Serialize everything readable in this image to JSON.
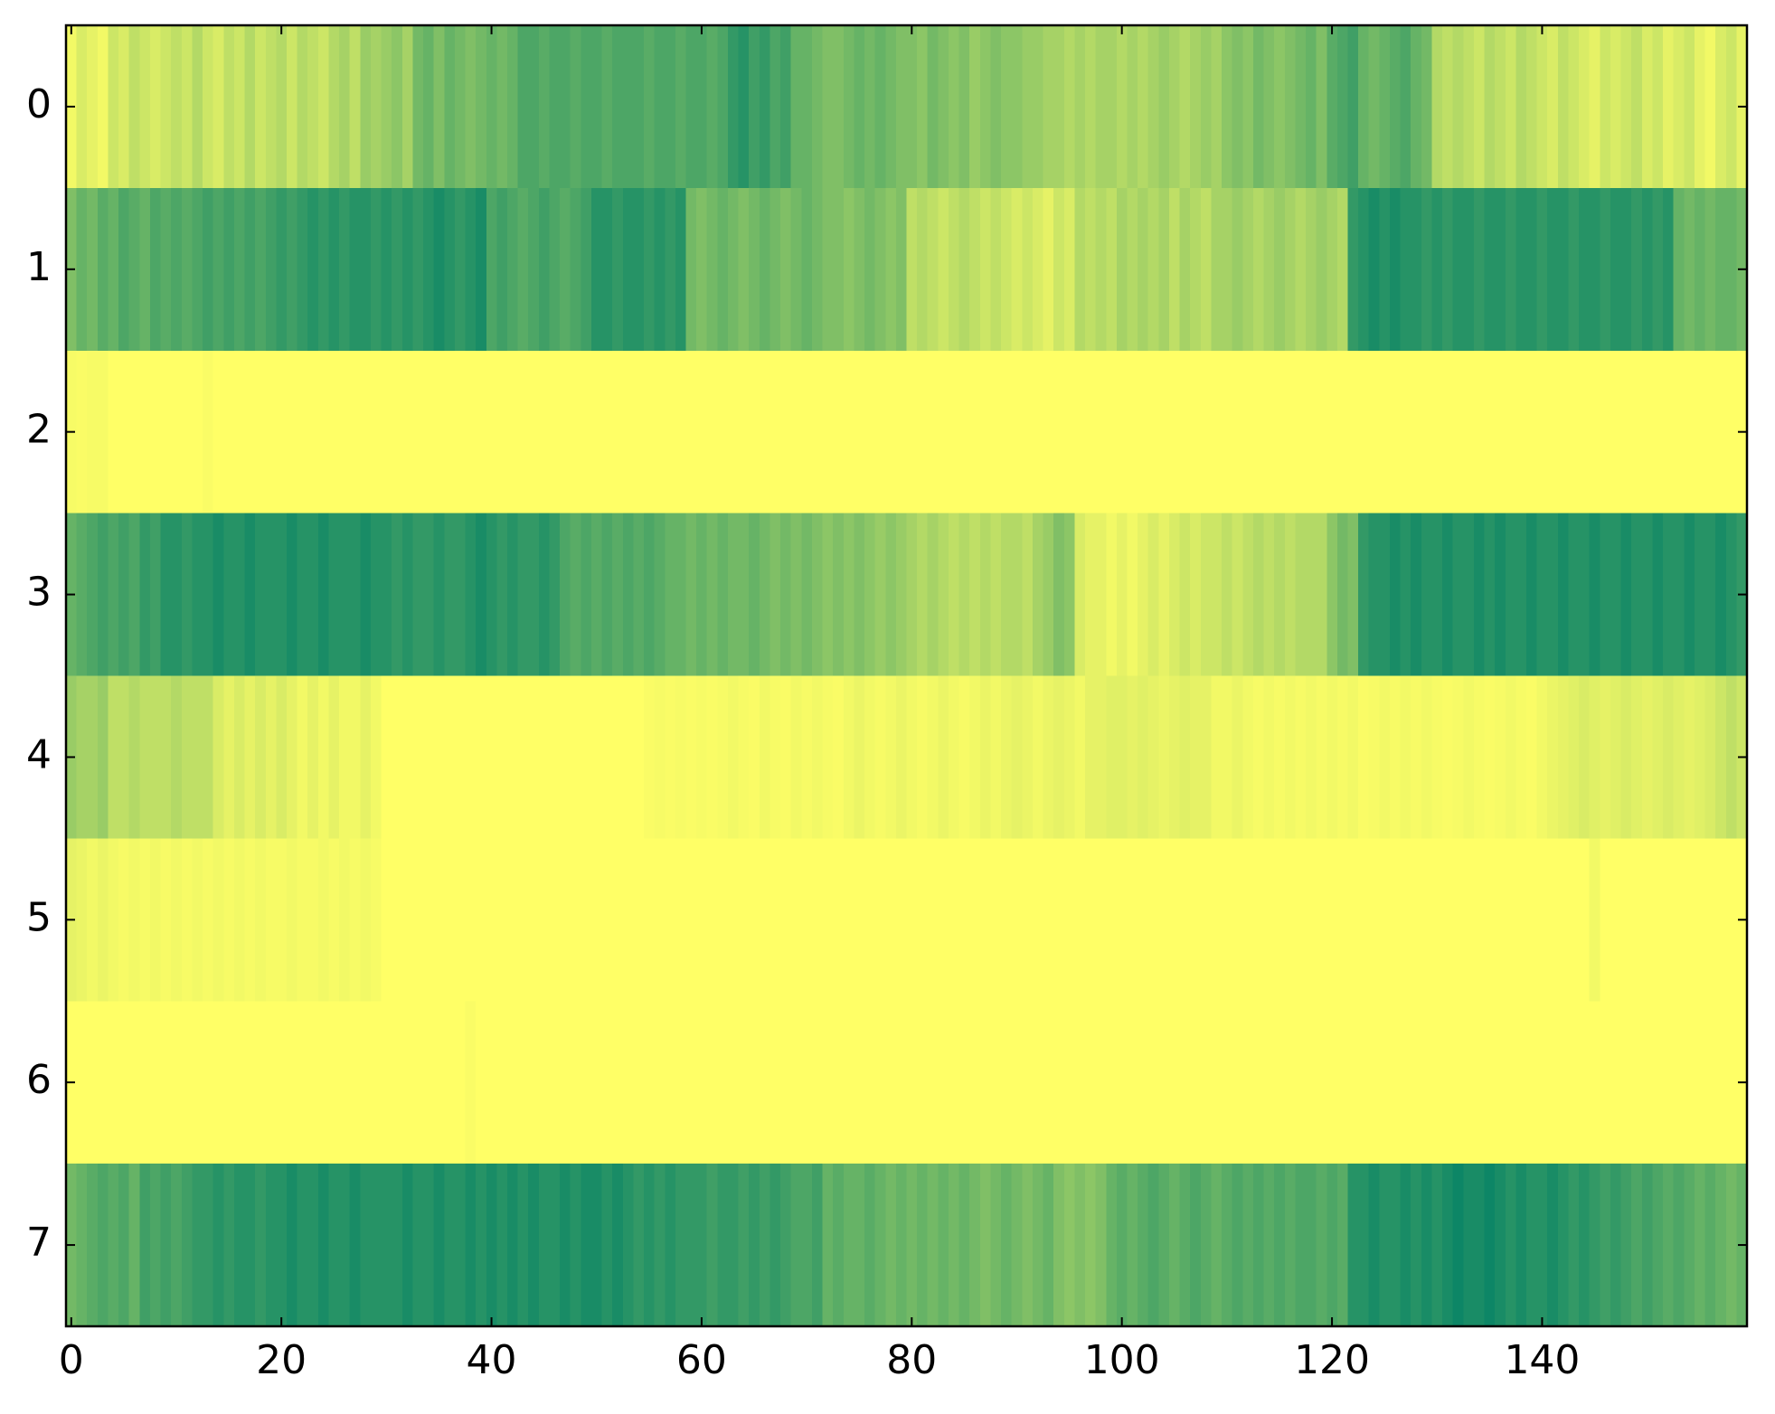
{
  "chart_data": {
    "type": "heatmap",
    "colormap": "summer_r",
    "vlim": [
      0,
      1
    ],
    "xlim": [
      -0.5,
      159.5
    ],
    "ylim": [
      7.5,
      -0.5
    ],
    "xticks": [
      0,
      20,
      40,
      60,
      80,
      100,
      120,
      140
    ],
    "yticks": [
      0,
      1,
      2,
      3,
      4,
      5,
      6,
      7
    ],
    "values": [
      [
        0.05,
        0.15,
        0.1,
        0.05,
        0.2,
        0.15,
        0.25,
        0.2,
        0.15,
        0.2,
        0.25,
        0.2,
        0.3,
        0.2,
        0.15,
        0.25,
        0.2,
        0.3,
        0.2,
        0.25,
        0.3,
        0.2,
        0.3,
        0.25,
        0.2,
        0.3,
        0.35,
        0.25,
        0.4,
        0.35,
        0.4,
        0.45,
        0.35,
        0.55,
        0.6,
        0.5,
        0.6,
        0.55,
        0.5,
        0.55,
        0.6,
        0.55,
        0.6,
        0.7,
        0.7,
        0.65,
        0.7,
        0.7,
        0.65,
        0.7,
        0.7,
        0.65,
        0.7,
        0.7,
        0.7,
        0.65,
        0.7,
        0.7,
        0.65,
        0.7,
        0.7,
        0.65,
        0.7,
        0.8,
        0.85,
        0.75,
        0.8,
        0.7,
        0.75,
        0.6,
        0.6,
        0.55,
        0.5,
        0.5,
        0.55,
        0.6,
        0.55,
        0.6,
        0.55,
        0.5,
        0.5,
        0.45,
        0.55,
        0.5,
        0.45,
        0.5,
        0.4,
        0.45,
        0.5,
        0.45,
        0.45,
        0.4,
        0.4,
        0.35,
        0.35,
        0.3,
        0.35,
        0.3,
        0.35,
        0.35,
        0.3,
        0.35,
        0.3,
        0.35,
        0.4,
        0.35,
        0.3,
        0.35,
        0.4,
        0.35,
        0.45,
        0.5,
        0.45,
        0.55,
        0.5,
        0.45,
        0.5,
        0.55,
        0.6,
        0.5,
        0.65,
        0.7,
        0.75,
        0.6,
        0.55,
        0.6,
        0.65,
        0.7,
        0.6,
        0.55,
        0.3,
        0.25,
        0.3,
        0.25,
        0.2,
        0.3,
        0.25,
        0.2,
        0.3,
        0.25,
        0.2,
        0.15,
        0.25,
        0.2,
        0.15,
        0.1,
        0.2,
        0.15,
        0.2,
        0.25,
        0.15,
        0.2,
        0.1,
        0.15,
        0.2,
        0.1,
        0.05,
        0.15,
        0.2,
        0.1
      ],
      [
        0.5,
        0.6,
        0.55,
        0.65,
        0.6,
        0.7,
        0.65,
        0.6,
        0.7,
        0.65,
        0.7,
        0.65,
        0.7,
        0.75,
        0.7,
        0.75,
        0.7,
        0.75,
        0.7,
        0.75,
        0.8,
        0.75,
        0.8,
        0.85,
        0.8,
        0.85,
        0.8,
        0.85,
        0.85,
        0.8,
        0.85,
        0.8,
        0.85,
        0.8,
        0.85,
        0.9,
        0.85,
        0.8,
        0.85,
        0.9,
        0.7,
        0.75,
        0.7,
        0.65,
        0.7,
        0.75,
        0.7,
        0.65,
        0.7,
        0.75,
        0.85,
        0.85,
        0.8,
        0.85,
        0.85,
        0.8,
        0.85,
        0.8,
        0.85,
        0.55,
        0.5,
        0.55,
        0.6,
        0.55,
        0.5,
        0.55,
        0.6,
        0.55,
        0.5,
        0.55,
        0.6,
        0.55,
        0.5,
        0.5,
        0.45,
        0.5,
        0.55,
        0.5,
        0.45,
        0.5,
        0.25,
        0.3,
        0.25,
        0.2,
        0.25,
        0.3,
        0.25,
        0.2,
        0.25,
        0.2,
        0.15,
        0.2,
        0.15,
        0.1,
        0.2,
        0.15,
        0.3,
        0.25,
        0.3,
        0.25,
        0.35,
        0.3,
        0.35,
        0.3,
        0.35,
        0.25,
        0.35,
        0.3,
        0.25,
        0.35,
        0.35,
        0.4,
        0.35,
        0.3,
        0.35,
        0.4,
        0.35,
        0.3,
        0.35,
        0.4,
        0.35,
        0.3,
        0.8,
        0.85,
        0.9,
        0.85,
        0.9,
        0.85,
        0.85,
        0.8,
        0.85,
        0.8,
        0.85,
        0.85,
        0.8,
        0.85,
        0.85,
        0.8,
        0.85,
        0.85,
        0.8,
        0.85,
        0.85,
        0.8,
        0.85,
        0.85,
        0.8,
        0.85,
        0.85,
        0.8,
        0.85,
        0.8,
        0.85,
        0.6,
        0.55,
        0.6,
        0.55,
        0.6,
        0.6,
        0.55
      ],
      [
        0.03,
        0.02,
        0.03,
        0.03,
        0,
        0,
        0,
        0,
        0,
        0,
        0,
        0,
        0,
        0.02,
        0,
        0,
        0,
        0,
        0,
        0,
        0,
        0,
        0,
        0,
        0,
        0,
        0,
        0,
        0,
        0,
        0,
        0,
        0,
        0,
        0,
        0,
        0,
        0,
        0,
        0,
        0,
        0,
        0,
        0,
        0,
        0,
        0,
        0,
        0,
        0,
        0,
        0,
        0,
        0,
        0,
        0,
        0,
        0,
        0,
        0,
        0,
        0,
        0,
        0,
        0,
        0,
        0,
        0,
        0,
        0,
        0,
        0,
        0,
        0,
        0,
        0,
        0,
        0,
        0,
        0,
        0,
        0,
        0,
        0,
        0,
        0,
        0,
        0,
        0,
        0,
        0,
        0,
        0,
        0,
        0,
        0,
        0,
        0,
        0,
        0,
        0,
        0,
        0,
        0,
        0,
        0,
        0,
        0,
        0,
        0,
        0,
        0,
        0,
        0,
        0,
        0,
        0,
        0,
        0,
        0,
        0,
        0,
        0,
        0,
        0,
        0,
        0,
        0,
        0,
        0,
        0,
        0,
        0,
        0,
        0,
        0,
        0,
        0,
        0,
        0,
        0,
        0,
        0,
        0,
        0,
        0,
        0,
        0,
        0,
        0,
        0,
        0,
        0,
        0,
        0,
        0,
        0,
        0,
        0,
        0
      ],
      [
        0.6,
        0.65,
        0.7,
        0.75,
        0.7,
        0.75,
        0.7,
        0.8,
        0.75,
        0.85,
        0.85,
        0.8,
        0.85,
        0.85,
        0.9,
        0.85,
        0.85,
        0.9,
        0.85,
        0.85,
        0.85,
        0.9,
        0.85,
        0.85,
        0.9,
        0.85,
        0.85,
        0.85,
        0.9,
        0.85,
        0.85,
        0.8,
        0.85,
        0.8,
        0.8,
        0.85,
        0.8,
        0.8,
        0.85,
        0.9,
        0.85,
        0.8,
        0.85,
        0.8,
        0.8,
        0.85,
        0.8,
        0.7,
        0.65,
        0.7,
        0.65,
        0.7,
        0.65,
        0.7,
        0.65,
        0.7,
        0.65,
        0.6,
        0.6,
        0.55,
        0.6,
        0.55,
        0.6,
        0.55,
        0.55,
        0.6,
        0.55,
        0.5,
        0.55,
        0.5,
        0.55,
        0.5,
        0.45,
        0.5,
        0.45,
        0.5,
        0.45,
        0.4,
        0.45,
        0.4,
        0.35,
        0.3,
        0.35,
        0.3,
        0.25,
        0.3,
        0.25,
        0.3,
        0.25,
        0.3,
        0.3,
        0.25,
        0.35,
        0.4,
        0.5,
        0.45,
        0.15,
        0.1,
        0.1,
        0.05,
        0.1,
        0.05,
        0.1,
        0.15,
        0.1,
        0.15,
        0.2,
        0.15,
        0.2,
        0.2,
        0.25,
        0.2,
        0.25,
        0.3,
        0.25,
        0.3,
        0.25,
        0.3,
        0.3,
        0.3,
        0.45,
        0.55,
        0.5,
        0.8,
        0.85,
        0.85,
        0.9,
        0.85,
        0.9,
        0.85,
        0.85,
        0.9,
        0.85,
        0.85,
        0.9,
        0.85,
        0.9,
        0.85,
        0.85,
        0.9,
        0.85,
        0.85,
        0.9,
        0.85,
        0.85,
        0.9,
        0.85,
        0.85,
        0.9,
        0.85,
        0.85,
        0.9,
        0.85,
        0.85,
        0.9,
        0.85,
        0.85,
        0.9,
        0.85,
        0.8
      ],
      [
        0.4,
        0.35,
        0.35,
        0.4,
        0.25,
        0.25,
        0.3,
        0.25,
        0.25,
        0.25,
        0.3,
        0.25,
        0.25,
        0.25,
        0.15,
        0.1,
        0.15,
        0.1,
        0.15,
        0.1,
        0.15,
        0.1,
        0.05,
        0.1,
        0.05,
        0.1,
        0.05,
        0.05,
        0.1,
        0.05,
        0,
        0,
        0,
        0,
        0,
        0,
        0,
        0,
        0,
        0,
        0,
        0,
        0,
        0,
        0,
        0,
        0,
        0,
        0,
        0,
        0,
        0,
        0,
        0,
        0,
        0.02,
        0.03,
        0.02,
        0.03,
        0.02,
        0.03,
        0.02,
        0.03,
        0.05,
        0.03,
        0.02,
        0.05,
        0.03,
        0.02,
        0.05,
        0.03,
        0.05,
        0.03,
        0.02,
        0.05,
        0.08,
        0.05,
        0.03,
        0.05,
        0.08,
        0.05,
        0.03,
        0.05,
        0.08,
        0.05,
        0.03,
        0.05,
        0.08,
        0.05,
        0.08,
        0.1,
        0.08,
        0.05,
        0.08,
        0.1,
        0.08,
        0.05,
        0.1,
        0.1,
        0.12,
        0.12,
        0.1,
        0.12,
        0.1,
        0.08,
        0.1,
        0.12,
        0.1,
        0.1,
        0.05,
        0.05,
        0.08,
        0.05,
        0.03,
        0.05,
        0.03,
        0.05,
        0.03,
        0.05,
        0.03,
        0.05,
        0.03,
        0.05,
        0.02,
        0.03,
        0.05,
        0.03,
        0.05,
        0.03,
        0.05,
        0.03,
        0.02,
        0.03,
        0.05,
        0.03,
        0.02,
        0.03,
        0.05,
        0.03,
        0.02,
        0.05,
        0.08,
        0.1,
        0.12,
        0.15,
        0.12,
        0.1,
        0.12,
        0.15,
        0.12,
        0.1,
        0.12,
        0.15,
        0.12,
        0.1,
        0.12,
        0.15,
        0.2,
        0.25,
        0.2
      ],
      [
        0.1,
        0.08,
        0.05,
        0.08,
        0.05,
        0.03,
        0.05,
        0.03,
        0.05,
        0.03,
        0.05,
        0.03,
        0.05,
        0.03,
        0.05,
        0.03,
        0.05,
        0.03,
        0.05,
        0.03,
        0.03,
        0.05,
        0.03,
        0.03,
        0.05,
        0.03,
        0.05,
        0.03,
        0.05,
        0.03,
        0,
        0,
        0,
        0,
        0,
        0,
        0,
        0,
        0,
        0,
        0,
        0,
        0,
        0,
        0,
        0,
        0,
        0,
        0,
        0,
        0,
        0,
        0,
        0,
        0,
        0,
        0,
        0,
        0,
        0,
        0,
        0,
        0,
        0,
        0,
        0,
        0,
        0,
        0,
        0,
        0,
        0,
        0,
        0,
        0,
        0,
        0,
        0,
        0,
        0,
        0,
        0,
        0,
        0,
        0,
        0,
        0,
        0,
        0,
        0,
        0,
        0,
        0,
        0,
        0,
        0,
        0,
        0,
        0,
        0,
        0,
        0,
        0,
        0,
        0,
        0,
        0,
        0,
        0,
        0,
        0,
        0,
        0,
        0,
        0,
        0,
        0,
        0,
        0,
        0,
        0,
        0,
        0,
        0,
        0,
        0,
        0,
        0,
        0,
        0,
        0,
        0,
        0,
        0,
        0,
        0,
        0,
        0,
        0,
        0,
        0,
        0,
        0,
        0,
        0,
        0.05,
        0,
        0,
        0,
        0,
        0,
        0,
        0,
        0,
        0,
        0,
        0,
        0,
        0,
        0
      ],
      [
        0,
        0,
        0,
        0,
        0,
        0,
        0,
        0,
        0,
        0,
        0,
        0,
        0,
        0,
        0,
        0,
        0,
        0,
        0,
        0,
        0,
        0,
        0,
        0,
        0,
        0,
        0,
        0,
        0,
        0,
        0,
        0,
        0,
        0,
        0,
        0,
        0,
        0,
        0.02,
        0,
        0,
        0,
        0,
        0,
        0,
        0,
        0,
        0,
        0,
        0,
        0,
        0,
        0,
        0,
        0,
        0,
        0,
        0,
        0,
        0,
        0,
        0,
        0,
        0,
        0,
        0,
        0,
        0,
        0,
        0,
        0,
        0,
        0,
        0,
        0,
        0,
        0,
        0,
        0,
        0,
        0,
        0,
        0,
        0,
        0,
        0,
        0,
        0,
        0,
        0,
        0,
        0,
        0,
        0,
        0,
        0,
        0,
        0,
        0,
        0,
        0,
        0,
        0,
        0,
        0,
        0,
        0,
        0,
        0,
        0,
        0,
        0,
        0,
        0,
        0,
        0,
        0,
        0,
        0,
        0,
        0,
        0,
        0,
        0,
        0,
        0,
        0,
        0,
        0,
        0,
        0,
        0,
        0,
        0,
        0,
        0,
        0,
        0,
        0,
        0,
        0,
        0,
        0,
        0,
        0,
        0,
        0,
        0,
        0,
        0,
        0,
        0,
        0,
        0,
        0,
        0,
        0,
        0,
        0,
        0
      ],
      [
        0.55,
        0.6,
        0.65,
        0.7,
        0.65,
        0.7,
        0.6,
        0.75,
        0.7,
        0.75,
        0.7,
        0.75,
        0.8,
        0.8,
        0.85,
        0.8,
        0.85,
        0.85,
        0.8,
        0.85,
        0.85,
        0.9,
        0.85,
        0.85,
        0.9,
        0.85,
        0.85,
        0.9,
        0.85,
        0.85,
        0.85,
        0.85,
        0.9,
        0.85,
        0.85,
        0.9,
        0.85,
        0.85,
        0.9,
        0.85,
        0.9,
        0.85,
        0.9,
        0.85,
        0.9,
        0.85,
        0.85,
        0.9,
        0.85,
        0.9,
        0.9,
        0.85,
        0.9,
        0.85,
        0.8,
        0.85,
        0.8,
        0.85,
        0.8,
        0.8,
        0.8,
        0.75,
        0.8,
        0.8,
        0.75,
        0.8,
        0.75,
        0.8,
        0.75,
        0.7,
        0.7,
        0.75,
        0.6,
        0.65,
        0.6,
        0.6,
        0.65,
        0.6,
        0.55,
        0.6,
        0.55,
        0.6,
        0.55,
        0.6,
        0.55,
        0.6,
        0.55,
        0.5,
        0.55,
        0.6,
        0.55,
        0.5,
        0.55,
        0.6,
        0.5,
        0.45,
        0.5,
        0.45,
        0.5,
        0.6,
        0.65,
        0.6,
        0.65,
        0.7,
        0.65,
        0.6,
        0.65,
        0.7,
        0.65,
        0.6,
        0.65,
        0.7,
        0.65,
        0.7,
        0.65,
        0.7,
        0.65,
        0.7,
        0.7,
        0.65,
        0.7,
        0.65,
        0.85,
        0.85,
        0.9,
        0.85,
        0.85,
        0.9,
        0.85,
        0.9,
        0.85,
        0.9,
        0.95,
        0.9,
        0.9,
        0.95,
        0.9,
        0.85,
        0.9,
        0.85,
        0.85,
        0.9,
        0.85,
        0.8,
        0.85,
        0.8,
        0.75,
        0.8,
        0.75,
        0.7,
        0.75,
        0.7,
        0.65,
        0.7,
        0.65,
        0.6,
        0.65,
        0.6,
        0.55,
        0.6
      ]
    ]
  }
}
